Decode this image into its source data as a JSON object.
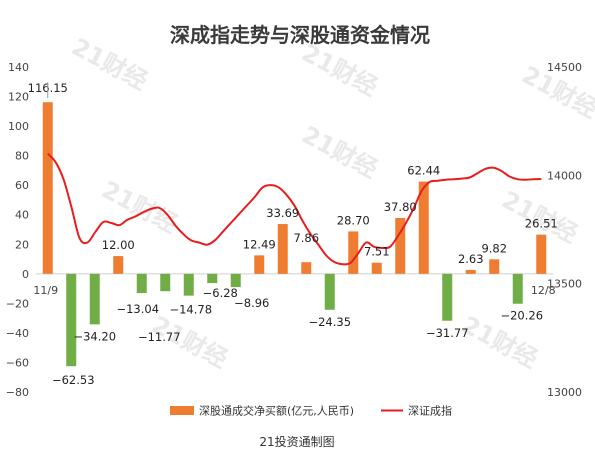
{
  "watermark": "21财经",
  "chart_data": {
    "type": "bar+line",
    "title": "深成指走势与深股通资金情况",
    "left_axis": {
      "ylim": [
        -80,
        140
      ],
      "ticks": [
        -80,
        -60,
        -40,
        -20,
        0,
        20,
        40,
        60,
        80,
        100,
        120,
        140
      ]
    },
    "right_axis": {
      "ylim": [
        13000,
        14500
      ],
      "ticks": [
        13000,
        13500,
        14000,
        14500
      ]
    },
    "x_endpoint_labels": [
      "11/9",
      "12/8"
    ],
    "series": [
      {
        "name": "深股通成交净买额(亿元,人民币)",
        "type": "bar",
        "axis": "left",
        "positive_color": "#ee7d31",
        "negative_color": "#71ad47",
        "values": [
          116.15,
          -62.53,
          -34.2,
          12.0,
          -13.04,
          -11.77,
          -14.78,
          -6.28,
          -8.96,
          12.49,
          33.69,
          7.86,
          -24.35,
          28.7,
          7.51,
          37.8,
          62.44,
          -31.77,
          2.63,
          9.82,
          -20.26,
          26.51
        ],
        "labels": [
          "116.15",
          "−62.53",
          "−34.20",
          "12.00",
          "−13.04",
          "−11.77",
          "−14.78",
          "−6.28",
          "−8.96",
          "12.49",
          "33.69",
          "7.86",
          "−24.35",
          "28.70",
          "7.51",
          "37.80",
          "62.44",
          "−31.77",
          "2.63",
          "9.82",
          "−20.26",
          "26.51"
        ]
      },
      {
        "name": "深证成指",
        "type": "line",
        "axis": "right",
        "color": "#e81d1d",
        "values": [
          14100,
          14060,
          13980,
          13850,
          13710,
          13690,
          13740,
          13785,
          13780,
          13770,
          13795,
          13810,
          13830,
          13845,
          13850,
          13820,
          13770,
          13730,
          13700,
          13690,
          13680,
          13700,
          13740,
          13780,
          13820,
          13860,
          13900,
          13945,
          13955,
          13945,
          13910,
          13860,
          13790,
          13730,
          13680,
          13630,
          13600,
          13590,
          13595,
          13640,
          13690,
          13670,
          13665,
          13670,
          13720,
          13780,
          13850,
          13930,
          13970,
          13975,
          13980,
          13982,
          13985,
          13990,
          14010,
          14030,
          14035,
          14020,
          13995,
          13982,
          13980,
          13982,
          13983
        ]
      }
    ],
    "legend": [
      "深股通成交净买额(亿元,人民币)",
      "深证成指"
    ],
    "source": "21投资通制图"
  }
}
